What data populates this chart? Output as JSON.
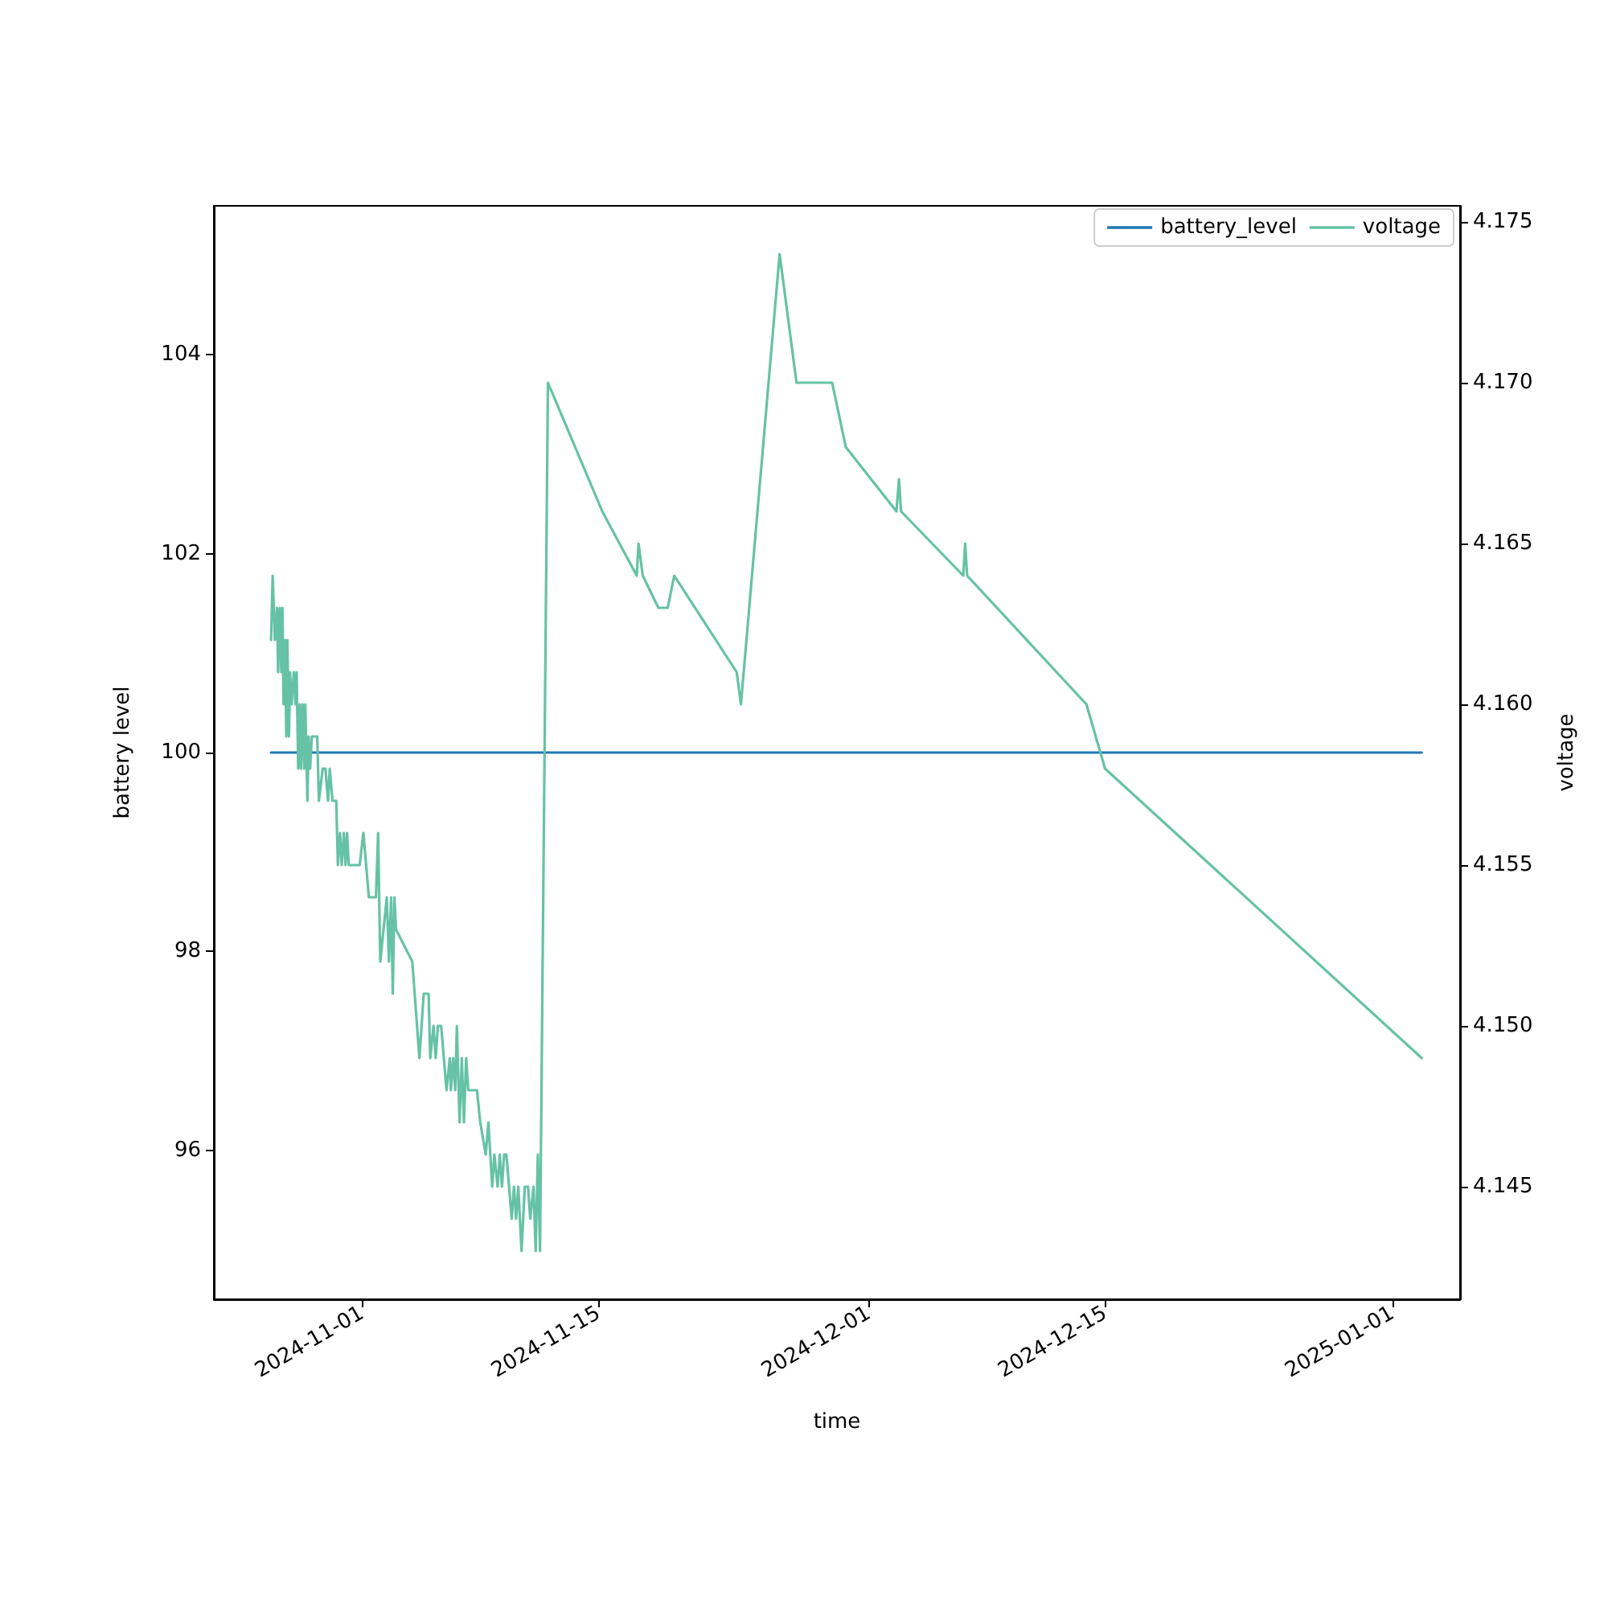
{
  "chart_data": {
    "type": "line",
    "xlabel": "time",
    "ylabel": "battery level",
    "y2label": "voltage",
    "xlim": [
      "2024-10-23T05:00",
      "2025-01-05T00:00"
    ],
    "xticks": [
      "2024-11-01",
      "2024-11-15",
      "2024-12-01",
      "2024-12-15",
      "2025-01-01"
    ],
    "ylim": [
      94.5,
      105.5
    ],
    "yticks": [
      96,
      98,
      100,
      102,
      104
    ],
    "y2lim": [
      4.1415,
      4.1755
    ],
    "y2ticks": [
      4.145,
      {
        "value": 4.15,
        "label": "4.150"
      },
      4.155,
      {
        "value": 4.16,
        "label": "4.160"
      },
      4.165,
      {
        "value": 4.17,
        "label": "4.170"
      },
      4.175
    ],
    "legend": "top right",
    "grid": false,
    "line_style": "solid",
    "series": [
      {
        "name": "battery_level",
        "color": "#1f77b4",
        "x": [
          "2024-10-26T14:15",
          "2025-01-02T17:30"
        ],
        "values": [
          100,
          100
        ]
      },
      {
        "name": "voltage",
        "color": "#66c2a5",
        "axis": "y2",
        "x": [
          "2024-10-26T14:15",
          "2024-10-26T16:35",
          "2024-10-26T19:40",
          "2024-10-26T22:45",
          "2024-10-27T00:20",
          "2024-10-27T02:40",
          "2024-10-27T04:55",
          "2024-10-27T06:30",
          "2024-10-27T08:00",
          "2024-10-27T10:20",
          "2024-10-27T11:55",
          "2024-10-27T13:25",
          "2024-10-27T15:45",
          "2024-10-27T17:20",
          "2024-10-27T19:35",
          "2024-10-27T22:40",
          "2024-10-28T01:00",
          "2024-10-28T02:35",
          "2024-10-28T04:50",
          "2024-10-28T07:10",
          "2024-10-28T08:45",
          "2024-10-28T11:05",
          "2024-10-28T13:20",
          "2024-10-28T14:55",
          "2024-10-28T18:00",
          "2024-10-28T19:35",
          "2024-10-28T21:50",
          "2024-10-29T00:10",
          "2024-10-29T07:55",
          "2024-10-29T10:15",
          "2024-10-29T15:40",
          "2024-10-29T19:30",
          "2024-10-29T23:20",
          "2024-10-30T01:40",
          "2024-10-30T05:30",
          "2024-10-30T10:55",
          "2024-10-30T13:15",
          "2024-10-30T16:20",
          "2024-10-30T18:40",
          "2024-10-30T21:45",
          "2024-10-31T00:05",
          "2024-10-31T02:20",
          "2024-10-31T04:40",
          "2024-10-31T20:10",
          "2024-11-01T01:30",
          "2024-11-01T09:15",
          "2024-11-01T19:20",
          "2024-11-01T22:25",
          "2024-11-02T01:30",
          "2024-11-02T10:45",
          "2024-11-02T13:50",
          "2024-11-02T16:55",
          "2024-11-02T19:15",
          "2024-11-02T21:35",
          "2024-11-02T23:50",
          "2024-11-03T23:00",
          "2024-11-04T09:05",
          "2024-11-04T15:15",
          "2024-11-04T22:10",
          "2024-11-05T00:30",
          "2024-11-05T05:10",
          "2024-11-05T08:15",
          "2024-11-05T11:20",
          "2024-11-05T16:00",
          "2024-11-05T23:40",
          "2024-11-06T04:20",
          "2024-11-06T05:50",
          "2024-11-06T09:00",
          "2024-11-06T12:00",
          "2024-11-06T14:20",
          "2024-11-06T18:10",
          "2024-11-06T21:20",
          "2024-11-07T00:25",
          "2024-11-07T03:30",
          "2024-11-07T06:35",
          "2024-11-07T18:55",
          "2024-11-07T23:35",
          "2024-11-08T07:20",
          "2024-11-08T11:10",
          "2024-11-08T16:35",
          "2024-11-08T19:40",
          "2024-11-09T00:15",
          "2024-11-09T03:20",
          "2024-11-09T06:25",
          "2024-11-09T09:30",
          "2024-11-09T12:40",
          "2024-11-09T16:30",
          "2024-11-09T20:20",
          "2024-11-09T23:30",
          "2024-11-10T02:30",
          "2024-11-10T05:35",
          "2024-11-10T10:15",
          "2024-11-10T14:50",
          "2024-11-10T19:30",
          "2024-11-10T22:35",
          "2024-11-11T03:15",
          "2024-11-11T06:20",
          "2024-11-11T09:25",
          "2024-11-11T12:30",
          "2024-11-11T23:45",
          "2024-11-15T05:00",
          "2024-11-17T06:00",
          "2024-11-17T08:30",
          "2024-11-17T14:30",
          "2024-11-18T12:45",
          "2024-11-19T02:00",
          "2024-11-19T11:15",
          "2024-11-23T04:00",
          "2024-11-23T10:00",
          "2024-11-25T17:00",
          "2024-11-26T17:00",
          "2024-11-28T19:40",
          "2024-11-29T15:00",
          "2024-12-02T15:00",
          "2024-12-02T18:40",
          "2024-12-02T21:30",
          "2024-12-06T14:00",
          "2024-12-06T16:40",
          "2024-12-06T19:30",
          "2024-12-13T21:00",
          "2024-12-14T23:30",
          "2025-01-02T17:30"
        ],
        "values": [
          4.162,
          4.164,
          4.162,
          4.163,
          4.161,
          4.163,
          4.161,
          4.163,
          4.16,
          4.162,
          4.159,
          4.162,
          4.159,
          4.161,
          4.16,
          4.161,
          4.16,
          4.161,
          4.158,
          4.16,
          4.158,
          4.16,
          4.158,
          4.16,
          4.157,
          4.159,
          4.158,
          4.159,
          4.159,
          4.157,
          4.158,
          4.158,
          4.157,
          4.158,
          4.157,
          4.157,
          4.155,
          4.156,
          4.155,
          4.156,
          4.155,
          4.156,
          4.155,
          4.155,
          4.156,
          4.154,
          4.154,
          4.156,
          4.152,
          4.154,
          4.152,
          4.154,
          4.151,
          4.154,
          4.153,
          4.152,
          4.149,
          4.151,
          4.151,
          4.149,
          4.15,
          4.149,
          4.15,
          4.15,
          4.148,
          4.149,
          4.148,
          4.149,
          4.148,
          4.15,
          4.147,
          4.149,
          4.147,
          4.149,
          4.148,
          4.148,
          4.147,
          4.146,
          4.147,
          4.145,
          4.146,
          4.145,
          4.146,
          4.145,
          4.146,
          4.146,
          4.145,
          4.144,
          4.145,
          4.144,
          4.145,
          4.143,
          4.145,
          4.145,
          4.144,
          4.145,
          4.143,
          4.146,
          4.143,
          4.17,
          4.166,
          4.164,
          4.165,
          4.164,
          4.163,
          4.163,
          4.164,
          4.161,
          4.16,
          4.174,
          4.17,
          4.17,
          4.168,
          4.166,
          4.167,
          4.166,
          4.164,
          4.165,
          4.164,
          4.16,
          4.158,
          4.149
        ]
      }
    ]
  }
}
